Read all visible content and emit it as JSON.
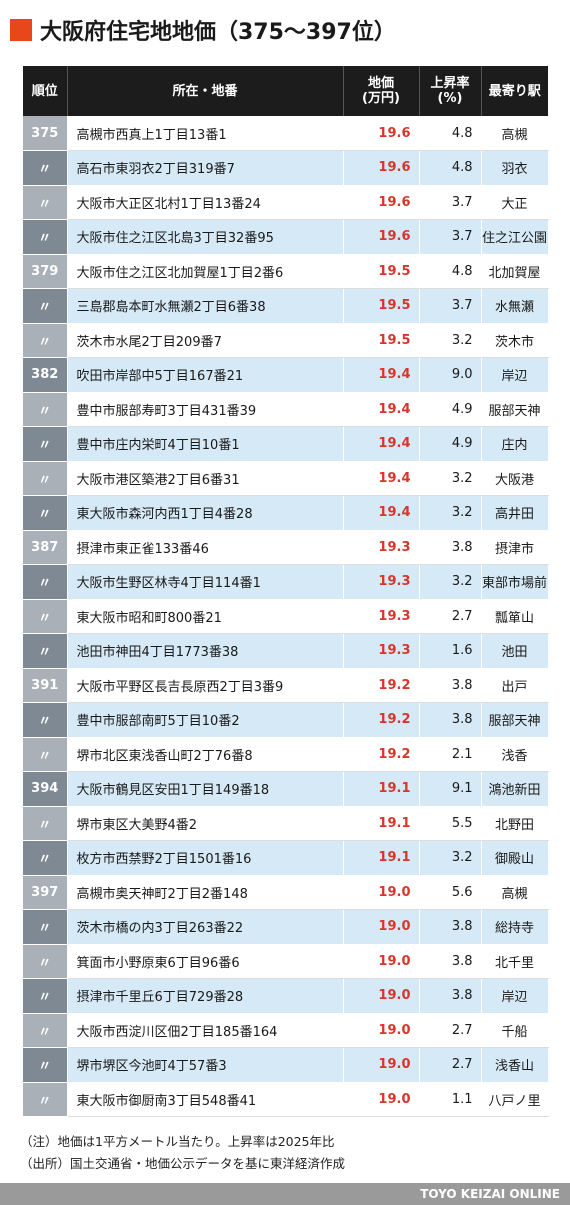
{
  "title": "大阪府住宅地地価（375〜397位）",
  "headers": {
    "rank": "順位",
    "address": "所在・地番",
    "price_line1": "地価",
    "price_line2": "(万円)",
    "rate_line1": "上昇率",
    "rate_line2": "(%)",
    "station": "最寄り駅"
  },
  "rows": [
    {
      "rank": "375",
      "address": "高槻市西真上1丁目13番1",
      "price": "19.6",
      "rate": "4.8",
      "station": "高槻"
    },
    {
      "rank": "〃",
      "address": "高石市東羽衣2丁目319番7",
      "price": "19.6",
      "rate": "4.8",
      "station": "羽衣"
    },
    {
      "rank": "〃",
      "address": "大阪市大正区北村1丁目13番24",
      "price": "19.6",
      "rate": "3.7",
      "station": "大正"
    },
    {
      "rank": "〃",
      "address": "大阪市住之江区北島3丁目32番95",
      "price": "19.6",
      "rate": "3.7",
      "station": "住之江公園"
    },
    {
      "rank": "379",
      "address": "大阪市住之江区北加賀屋1丁目2番6",
      "price": "19.5",
      "rate": "4.8",
      "station": "北加賀屋"
    },
    {
      "rank": "〃",
      "address": "三島郡島本町水無瀬2丁目6番38",
      "price": "19.5",
      "rate": "3.7",
      "station": "水無瀬"
    },
    {
      "rank": "〃",
      "address": "茨木市水尾2丁目209番7",
      "price": "19.5",
      "rate": "3.2",
      "station": "茨木市"
    },
    {
      "rank": "382",
      "address": "吹田市岸部中5丁目167番21",
      "price": "19.4",
      "rate": "9.0",
      "station": "岸辺"
    },
    {
      "rank": "〃",
      "address": "豊中市服部寿町3丁目431番39",
      "price": "19.4",
      "rate": "4.9",
      "station": "服部天神"
    },
    {
      "rank": "〃",
      "address": "豊中市庄内栄町4丁目10番1",
      "price": "19.4",
      "rate": "4.9",
      "station": "庄内"
    },
    {
      "rank": "〃",
      "address": "大阪市港区築港2丁目6番31",
      "price": "19.4",
      "rate": "3.2",
      "station": "大阪港"
    },
    {
      "rank": "〃",
      "address": "東大阪市森河内西1丁目4番28",
      "price": "19.4",
      "rate": "3.2",
      "station": "高井田"
    },
    {
      "rank": "387",
      "address": "摂津市東正雀133番46",
      "price": "19.3",
      "rate": "3.8",
      "station": "摂津市"
    },
    {
      "rank": "〃",
      "address": "大阪市生野区林寺4丁目114番1",
      "price": "19.3",
      "rate": "3.2",
      "station": "東部市場前"
    },
    {
      "rank": "〃",
      "address": "東大阪市昭和町800番21",
      "price": "19.3",
      "rate": "2.7",
      "station": "瓢箪山"
    },
    {
      "rank": "〃",
      "address": "池田市神田4丁目1773番38",
      "price": "19.3",
      "rate": "1.6",
      "station": "池田"
    },
    {
      "rank": "391",
      "address": "大阪市平野区長吉長原西2丁目3番9",
      "price": "19.2",
      "rate": "3.8",
      "station": "出戸"
    },
    {
      "rank": "〃",
      "address": "豊中市服部南町5丁目10番2",
      "price": "19.2",
      "rate": "3.8",
      "station": "服部天神"
    },
    {
      "rank": "〃",
      "address": "堺市北区東浅香山町2丁76番8",
      "price": "19.2",
      "rate": "2.1",
      "station": "浅香"
    },
    {
      "rank": "394",
      "address": "大阪市鶴見区安田1丁目149番18",
      "price": "19.1",
      "rate": "9.1",
      "station": "鴻池新田"
    },
    {
      "rank": "〃",
      "address": "堺市東区大美野4番2",
      "price": "19.1",
      "rate": "5.5",
      "station": "北野田"
    },
    {
      "rank": "〃",
      "address": "枚方市西禁野2丁目1501番16",
      "price": "19.1",
      "rate": "3.2",
      "station": "御殿山"
    },
    {
      "rank": "397",
      "address": "高槻市奥天神町2丁目2番148",
      "price": "19.0",
      "rate": "5.6",
      "station": "高槻"
    },
    {
      "rank": "〃",
      "address": "茨木市橋の内3丁目263番22",
      "price": "19.0",
      "rate": "3.8",
      "station": "総持寺"
    },
    {
      "rank": "〃",
      "address": "箕面市小野原東6丁目96番6",
      "price": "19.0",
      "rate": "3.8",
      "station": "北千里"
    },
    {
      "rank": "〃",
      "address": "摂津市千里丘6丁目729番28",
      "price": "19.0",
      "rate": "3.8",
      "station": "岸辺"
    },
    {
      "rank": "〃",
      "address": "大阪市西淀川区佃2丁目185番164",
      "price": "19.0",
      "rate": "2.7",
      "station": "千船"
    },
    {
      "rank": "〃",
      "address": "堺市堺区今池町4丁57番3",
      "price": "19.0",
      "rate": "2.7",
      "station": "浅香山"
    },
    {
      "rank": "〃",
      "address": "東大阪市御厨南3丁目548番41",
      "price": "19.0",
      "rate": "1.1",
      "station": "八戸ノ里"
    }
  ],
  "notes": {
    "note1": "（注）地価は1平方メートル当たり。上昇率は2025年比",
    "note2": "（出所）国土交通省・地価公示データを基に東洋経済作成"
  },
  "footer": "TOYO KEIZAI ONLINE",
  "colors": {
    "accent": "#e8471c",
    "header_bg": "#1c1c1c",
    "row_alt": "#d5e9f6",
    "price_text": "#d9362a",
    "rank_light": "#a9b0b7",
    "rank_dark": "#7f8993"
  }
}
